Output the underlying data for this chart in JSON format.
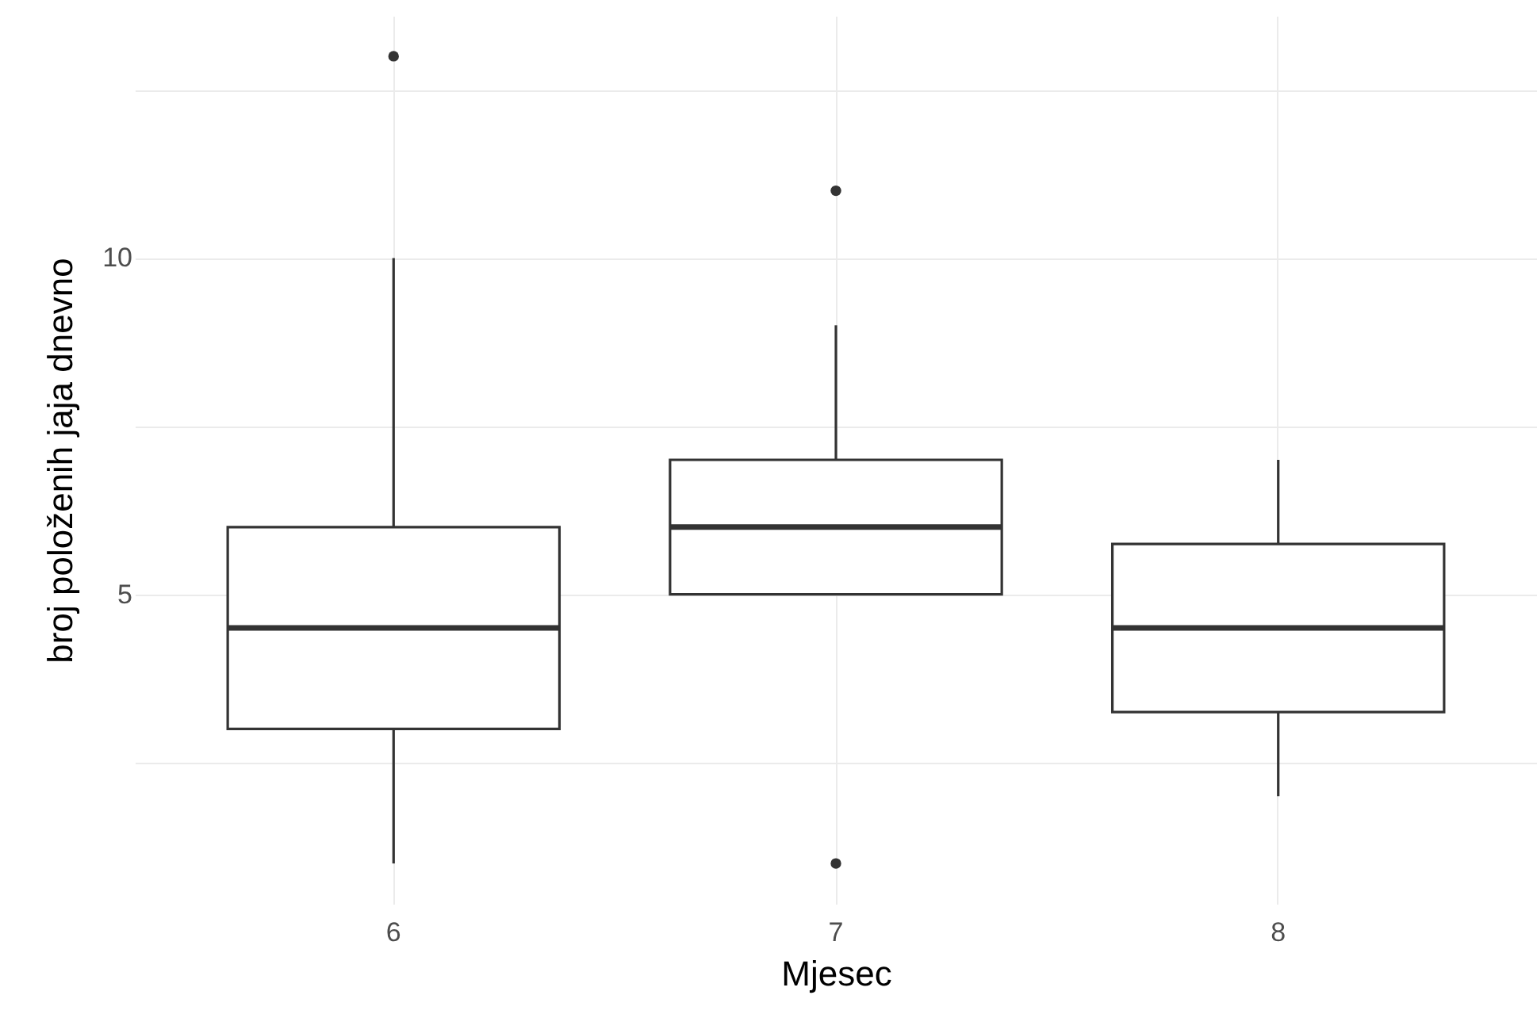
{
  "chart_data": {
    "type": "box",
    "xlabel": "Mjesec",
    "ylabel": "broj položenih jaja dnevno",
    "categories": [
      "6",
      "7",
      "8"
    ],
    "boxes": [
      {
        "low": 1,
        "q1": 3,
        "median": 4.5,
        "q3": 6,
        "high": 10,
        "outliers": [
          13
        ]
      },
      {
        "low": 5,
        "q1": 5,
        "median": 6,
        "q3": 7,
        "high": 9,
        "outliers": [
          11,
          1
        ]
      },
      {
        "low": 2,
        "q1": 3.25,
        "median": 4.5,
        "q3": 5.75,
        "high": 7
      }
    ],
    "color": "#333333",
    "ylim": [
      0.4,
      13.6
    ],
    "yticks": [
      {
        "value": 2.5,
        "label": null
      },
      5,
      {
        "value": 7.5,
        "label": null
      },
      10,
      {
        "value": 12.5,
        "label": null
      }
    ],
    "grid": true
  }
}
